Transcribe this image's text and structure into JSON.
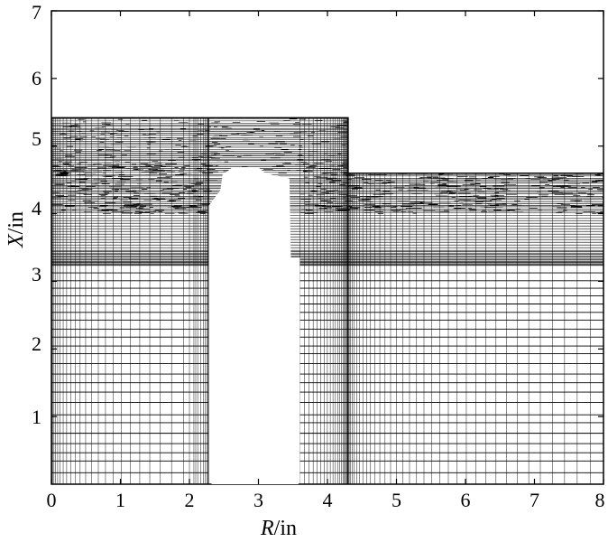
{
  "figure": {
    "type": "computational mesh diagram",
    "x_axis": {
      "label_var": "R",
      "label_unit": "/in",
      "range": [
        0,
        8
      ],
      "ticks": [
        "0",
        "1",
        "2",
        "3",
        "4",
        "5",
        "6",
        "7",
        "8"
      ]
    },
    "y_axis": {
      "label_var": "X",
      "label_unit": "/in",
      "range": [
        0,
        7
      ],
      "ticks": [
        "1",
        "2",
        "3",
        "4",
        "5",
        "6",
        "7"
      ]
    },
    "mesh_region_outline_data_units": [
      [
        0,
        0
      ],
      [
        2.28,
        0
      ],
      [
        2.28,
        4.12
      ],
      [
        2.45,
        4.35
      ],
      [
        2.48,
        4.58
      ],
      [
        2.62,
        4.68
      ],
      [
        3.0,
        4.68
      ],
      [
        3.1,
        4.6
      ],
      [
        3.45,
        4.52
      ],
      [
        3.47,
        3.35
      ],
      [
        3.6,
        3.35
      ],
      [
        3.6,
        0
      ],
      [
        8,
        0
      ],
      [
        8,
        4.6
      ],
      [
        4.3,
        4.6
      ],
      [
        4.3,
        5.42
      ],
      [
        0,
        5.42
      ]
    ],
    "cavity_region_outline_data_units": [
      [
        2.32,
        0
      ],
      [
        3.58,
        0
      ],
      [
        3.58,
        3.3
      ],
      [
        3.45,
        3.3
      ],
      [
        3.45,
        4.45
      ],
      [
        3.05,
        4.5
      ],
      [
        2.95,
        4.62
      ],
      [
        2.62,
        4.62
      ],
      [
        2.5,
        4.45
      ],
      [
        2.36,
        4.1
      ]
    ],
    "colors": {
      "line": "#000000",
      "background": "#ffffff"
    }
  }
}
